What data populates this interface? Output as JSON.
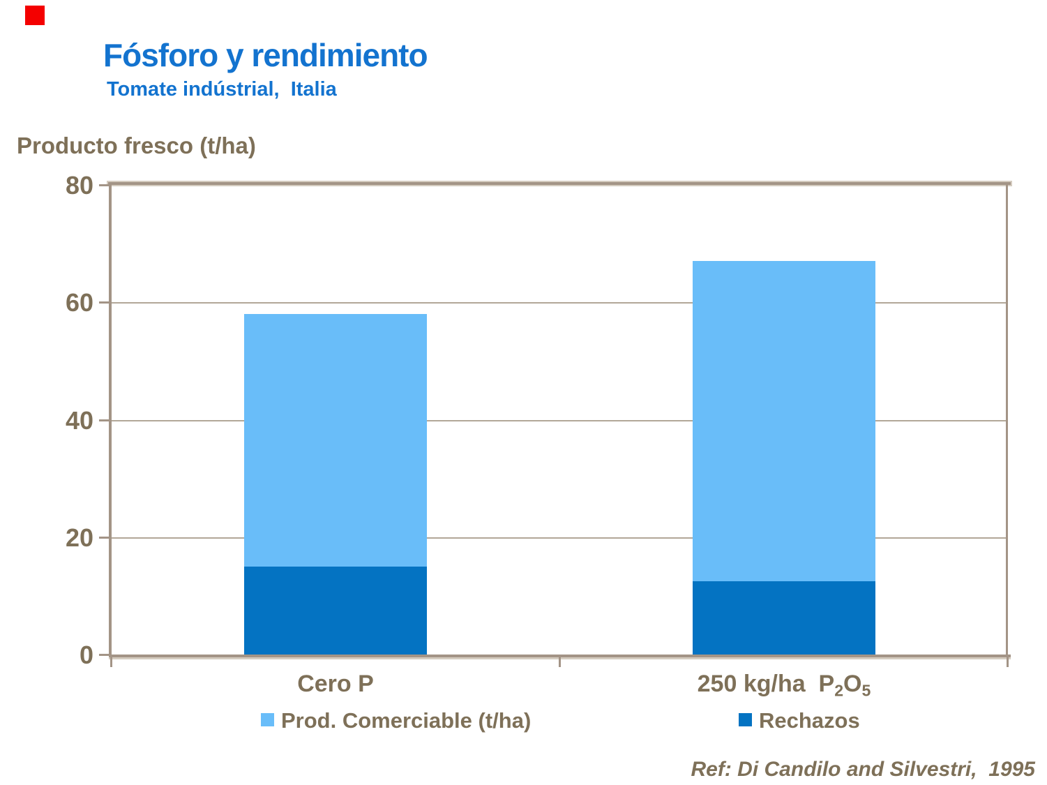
{
  "decoration": {
    "red_square_color": "#f40000"
  },
  "header": {
    "title": "Fósforo y rendimiento",
    "subtitle": "Tomate indústrial,  Italia"
  },
  "chart_data": {
    "type": "bar",
    "stacked": true,
    "title": "Fósforo y rendimiento",
    "subtitle": "Tomate indústrial, Italia",
    "ylabel": "Producto fresco (t/ha)",
    "ylim": [
      0,
      80
    ],
    "yticks": [
      0,
      20,
      40,
      60,
      80
    ],
    "grid": true,
    "categories": [
      "Cero P",
      "250 kg/ha P2O5"
    ],
    "categories_rich": [
      [
        {
          "t": "Cero P"
        }
      ],
      [
        {
          "t": "250 kg/ha  P"
        },
        {
          "t": "2",
          "sub": true
        },
        {
          "t": "O"
        },
        {
          "t": "5",
          "sub": true
        }
      ]
    ],
    "series": [
      {
        "name": "Rechazos",
        "color": "#0473c2",
        "values": [
          15,
          12.5
        ]
      },
      {
        "name": "Prod. Comerciable (t/ha)",
        "color": "#69bdf9",
        "values": [
          43,
          54.5
        ]
      }
    ],
    "totals": [
      58,
      67
    ],
    "legend_position": "bottom"
  },
  "legend": {
    "items": [
      {
        "label": "Prod. Comerciable (t/ha)",
        "color": "#69bdf9"
      },
      {
        "label": "Rechazos",
        "color": "#0473c2"
      }
    ]
  },
  "footer": {
    "reference": "Ref: Di Candilo and Silvestri,  1995"
  },
  "colors": {
    "title_blue": "#1373cf",
    "text_brown": "#7e7058",
    "frame_tan": "#a39486",
    "frame_halo": "#d5ccc0",
    "gridline_tan": "#b2a798",
    "bar_light_blue": "#69bdf9",
    "bar_dark_blue": "#0473c2"
  }
}
